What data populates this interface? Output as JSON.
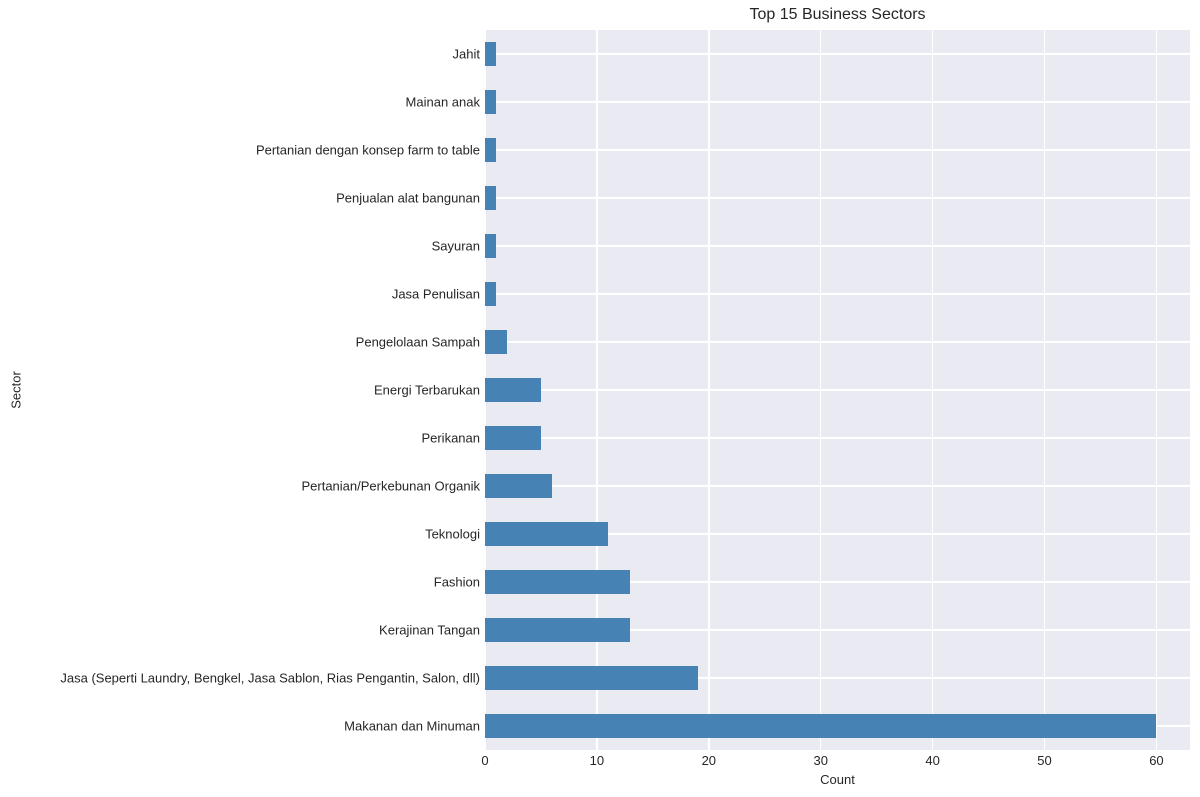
{
  "chart_data": {
    "type": "bar",
    "orientation": "horizontal",
    "title": "Top 15 Business Sectors",
    "xlabel": "Count",
    "ylabel": "Sector",
    "xlim": [
      0,
      63
    ],
    "xticks": [
      0,
      10,
      20,
      30,
      40,
      50,
      60
    ],
    "grid": true,
    "bar_color": "#4682b4",
    "background_color": "#eaeaf2",
    "categories": [
      "Jahit",
      "Mainan anak",
      "Pertanian dengan konsep farm to table",
      "Penjualan alat bangunan",
      "Sayuran",
      "Jasa Penulisan",
      "Pengelolaan Sampah",
      "Energi Terbarukan",
      "Perikanan",
      "Pertanian/Perkebunan Organik",
      "Teknologi",
      "Fashion",
      "Kerajinan Tangan",
      "Jasa (Seperti Laundry, Bengkel, Jasa Sablon, Rias Pengantin, Salon, dll)",
      "Makanan dan Minuman"
    ],
    "values": [
      1,
      1,
      1,
      1,
      1,
      1,
      2,
      5,
      5,
      6,
      11,
      13,
      13,
      19,
      60
    ]
  }
}
